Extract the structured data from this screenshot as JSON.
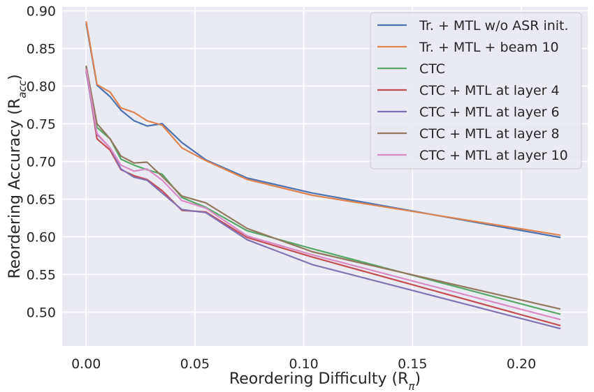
{
  "chart_data": {
    "type": "line",
    "xlabel": "Reordering Difficulty (R",
    "xlabel_sub": "π",
    "xlabel_close": ")",
    "ylabel": "Reordering Accuracy (R",
    "ylabel_sub": "acc",
    "ylabel_close": ")",
    "xlim": [
      -0.011,
      0.2305
    ],
    "ylim": [
      0.455,
      0.905
    ],
    "xticks": [
      0.0,
      0.05,
      0.1,
      0.15,
      0.2
    ],
    "xtick_labels": [
      "0.00",
      "0.05",
      "0.10",
      "0.15",
      "0.20"
    ],
    "yticks": [
      0.5,
      0.55,
      0.6,
      0.65,
      0.7,
      0.75,
      0.8,
      0.85,
      0.9
    ],
    "ytick_labels": [
      "0.50",
      "0.55",
      "0.60",
      "0.65",
      "0.70",
      "0.75",
      "0.80",
      "0.85",
      "0.90"
    ],
    "grid": true,
    "legend_position": "top-right",
    "series": [
      {
        "name": "Tr. + MTL w/o ASR init.",
        "color": "#4c72b0",
        "x": [
          0.0,
          0.005,
          0.011,
          0.016,
          0.022,
          0.028,
          0.035,
          0.044,
          0.055,
          0.074,
          0.104,
          0.218
        ],
        "y": [
          0.883,
          0.801,
          0.786,
          0.768,
          0.754,
          0.747,
          0.75,
          0.725,
          0.702,
          0.678,
          0.658,
          0.599
        ]
      },
      {
        "name": "Tr. + MTL + beam 10",
        "color": "#dd8452",
        "x": [
          0.0,
          0.005,
          0.011,
          0.016,
          0.022,
          0.028,
          0.035,
          0.044,
          0.055,
          0.074,
          0.104,
          0.218
        ],
        "y": [
          0.886,
          0.802,
          0.792,
          0.771,
          0.765,
          0.754,
          0.748,
          0.718,
          0.701,
          0.676,
          0.655,
          0.602
        ]
      },
      {
        "name": "CTC",
        "color": "#55a868",
        "x": [
          0.0,
          0.005,
          0.011,
          0.016,
          0.022,
          0.028,
          0.035,
          0.044,
          0.055,
          0.074,
          0.104,
          0.218
        ],
        "y": [
          0.826,
          0.745,
          0.73,
          0.703,
          0.695,
          0.689,
          0.683,
          0.652,
          0.639,
          0.608,
          0.584,
          0.497
        ]
      },
      {
        "name": "CTC + MTL at layer 4",
        "color": "#c44e52",
        "x": [
          0.0,
          0.005,
          0.011,
          0.016,
          0.022,
          0.028,
          0.035,
          0.044,
          0.055,
          0.074,
          0.104,
          0.218
        ],
        "y": [
          0.822,
          0.73,
          0.715,
          0.689,
          0.681,
          0.676,
          0.661,
          0.635,
          0.633,
          0.599,
          0.573,
          0.482
        ]
      },
      {
        "name": "CTC + MTL at layer 6",
        "color": "#8172b3",
        "x": [
          0.0,
          0.005,
          0.011,
          0.016,
          0.022,
          0.028,
          0.035,
          0.044,
          0.055,
          0.074,
          0.104,
          0.218
        ],
        "y": [
          0.819,
          0.736,
          0.718,
          0.69,
          0.679,
          0.675,
          0.658,
          0.636,
          0.632,
          0.596,
          0.563,
          0.478
        ]
      },
      {
        "name": "CTC + MTL at layer 8",
        "color": "#937860",
        "x": [
          0.0,
          0.005,
          0.011,
          0.016,
          0.022,
          0.028,
          0.035,
          0.044,
          0.055,
          0.074,
          0.104,
          0.218
        ],
        "y": [
          0.827,
          0.75,
          0.73,
          0.707,
          0.698,
          0.699,
          0.68,
          0.654,
          0.645,
          0.611,
          0.58,
          0.504
        ]
      },
      {
        "name": "CTC + MTL at layer 10",
        "color": "#da8bc3",
        "x": [
          0.0,
          0.005,
          0.011,
          0.016,
          0.022,
          0.028,
          0.035,
          0.044,
          0.055,
          0.074,
          0.104,
          0.218
        ],
        "y": [
          0.823,
          0.737,
          0.718,
          0.695,
          0.687,
          0.69,
          0.675,
          0.648,
          0.638,
          0.601,
          0.576,
          0.49
        ]
      }
    ]
  }
}
